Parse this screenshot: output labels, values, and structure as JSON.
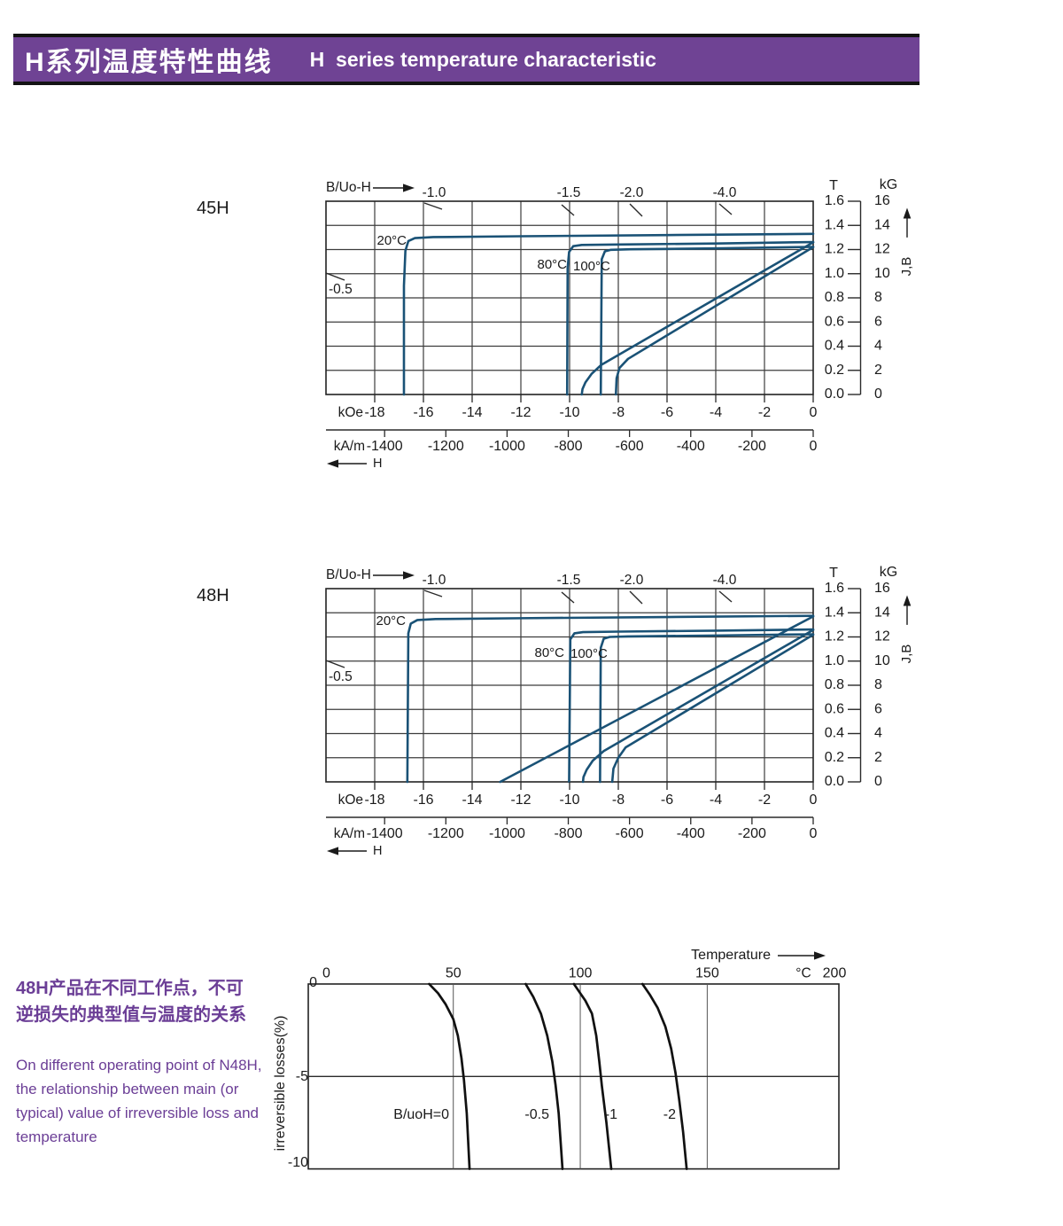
{
  "banner": {
    "title_cn": "H系列温度特性曲线",
    "title_en": "H  series temperature characteristic",
    "bg_color": "#6f4394",
    "text_color": "#ffffff"
  },
  "side_note": {
    "cn": "48H产品在不同工作点，不可\n逆损失的典型值与温度的关系",
    "en": "On different operating point of N48H,\nthe relationship between main (or\ntypical) value of irreversible loss and\ntemperature",
    "color": "#6b3e96"
  },
  "chart_data": [
    {
      "type": "line",
      "id": "bh-45h",
      "title": "45H",
      "corner_label": "B/Uo-H",
      "curve_color": "#1a5276",
      "x_axis": {
        "unit_primary": "kOe",
        "ticks_primary": [
          -18,
          -16,
          -14,
          -12,
          -10,
          -8,
          -6,
          -4,
          -2,
          0
        ],
        "unit_secondary": "kA/m",
        "ticks_secondary": [
          -1400,
          -1200,
          -1000,
          -800,
          -600,
          -400,
          -200,
          0
        ],
        "arrow_label": "H",
        "range_kOe": [
          -20,
          0
        ]
      },
      "y_axis": {
        "unit_left": "T",
        "ticks_left": [
          "1.6",
          "1.4",
          "1.2",
          "1.0",
          "0.8",
          "0.6",
          "0.4",
          "0.2",
          "0.0"
        ],
        "unit_right": "kG",
        "ticks_right": [
          16,
          14,
          12,
          10,
          8,
          6,
          4,
          2,
          0
        ],
        "curve_label": "J,B",
        "range_kG": [
          0,
          16
        ]
      },
      "load_line_labels_top": [
        "-1.0",
        "-1.5",
        "-2.0",
        "-4.0"
      ],
      "load_line_label_left": "-0.5",
      "series": [
        {
          "name": "20°C",
          "curve": "J",
          "points": [
            [
              0,
              13.3
            ],
            [
              -6,
              13.2
            ],
            [
              -12,
              13.1
            ],
            [
              -15.6,
              13.03
            ],
            [
              -16.35,
              12.95
            ],
            [
              -16.62,
              12.7
            ],
            [
              -16.74,
              11.9
            ],
            [
              -16.8,
              9
            ],
            [
              -16.8,
              0
            ]
          ]
        },
        {
          "name": "80°C",
          "curve": "J",
          "points": [
            [
              0,
              12.62
            ],
            [
              -4,
              12.5
            ],
            [
              -8,
              12.42
            ],
            [
              -9.5,
              12.38
            ],
            [
              -9.85,
              12.28
            ],
            [
              -10.02,
              11.8
            ],
            [
              -10.08,
              10.5
            ],
            [
              -10.1,
              0
            ]
          ]
        },
        {
          "name": "100°C",
          "curve": "J",
          "points": [
            [
              0,
              12.22
            ],
            [
              -4,
              12.1
            ],
            [
              -7.5,
              12.02
            ],
            [
              -8.3,
              11.98
            ],
            [
              -8.55,
              11.85
            ],
            [
              -8.68,
              11.2
            ],
            [
              -8.72,
              0
            ]
          ]
        },
        {
          "name": "80°C",
          "curve": "B",
          "points": [
            [
              0,
              12.6
            ],
            [
              -8.7,
              2.45
            ],
            [
              -9.1,
              1.7
            ],
            [
              -9.35,
              1.0
            ],
            [
              -9.47,
              0.45
            ],
            [
              -9.5,
              0
            ]
          ]
        },
        {
          "name": "100°C",
          "curve": "B",
          "points": [
            [
              0,
              12.2
            ],
            [
              -7.6,
              2.95
            ],
            [
              -7.95,
              2.2
            ],
            [
              -8.07,
              1.35
            ],
            [
              -8.1,
              0
            ]
          ]
        }
      ]
    },
    {
      "type": "line",
      "id": "bh-48h",
      "title": "48H",
      "corner_label": "B/Uo-H",
      "curve_color": "#1a5276",
      "x_axis": {
        "unit_primary": "kOe",
        "ticks_primary": [
          -18,
          -16,
          -14,
          -12,
          -10,
          -8,
          -6,
          -4,
          -2,
          0
        ],
        "unit_secondary": "kA/m",
        "ticks_secondary": [
          -1400,
          -1200,
          -1000,
          -800,
          -600,
          -400,
          -200,
          0
        ],
        "arrow_label": "H",
        "range_kOe": [
          -20,
          0
        ]
      },
      "y_axis": {
        "unit_left": "T",
        "ticks_left": [
          "1.6",
          "1.4",
          "1.2",
          "1.0",
          "0.8",
          "0.6",
          "0.4",
          "0.2",
          "0.0"
        ],
        "unit_right": "kG",
        "ticks_right": [
          16,
          14,
          12,
          10,
          8,
          6,
          4,
          2,
          0
        ],
        "curve_label": "J,B",
        "range_kG": [
          0,
          16
        ]
      },
      "load_line_labels_top": [
        "-1.0",
        "-1.5",
        "-2.0",
        "-4.0"
      ],
      "load_line_label_left": "-0.5",
      "series": [
        {
          "name": "20°C",
          "curve": "J",
          "points": [
            [
              0,
              13.75
            ],
            [
              -6,
              13.65
            ],
            [
              -12,
              13.55
            ],
            [
              -15.5,
              13.48
            ],
            [
              -16.25,
              13.4
            ],
            [
              -16.52,
              13.1
            ],
            [
              -16.62,
              12.3
            ],
            [
              -16.66,
              0
            ]
          ]
        },
        {
          "name": "80°C",
          "curve": "J",
          "points": [
            [
              0,
              12.62
            ],
            [
              -4,
              12.52
            ],
            [
              -8,
              12.44
            ],
            [
              -9.45,
              12.4
            ],
            [
              -9.8,
              12.3
            ],
            [
              -9.97,
              11.8
            ],
            [
              -10.02,
              0
            ]
          ]
        },
        {
          "name": "100°C",
          "curve": "J",
          "points": [
            [
              0,
              12.22
            ],
            [
              -4,
              12.12
            ],
            [
              -7.6,
              12.04
            ],
            [
              -8.35,
              12.0
            ],
            [
              -8.6,
              11.85
            ],
            [
              -8.72,
              11.1
            ],
            [
              -8.75,
              0
            ]
          ]
        },
        {
          "name": "20°C",
          "curve": "B",
          "points": [
            [
              0,
              13.7
            ],
            [
              -12.85,
              0
            ]
          ]
        },
        {
          "name": "80°C",
          "curve": "B",
          "points": [
            [
              0,
              12.58
            ],
            [
              -8.6,
              2.55
            ],
            [
              -9.05,
              1.75
            ],
            [
              -9.3,
              1.0
            ],
            [
              -9.43,
              0.4
            ],
            [
              -9.45,
              0
            ]
          ]
        },
        {
          "name": "100°C",
          "curve": "B",
          "points": [
            [
              0,
              12.18
            ],
            [
              -7.7,
              2.85
            ],
            [
              -8.0,
              2.0
            ],
            [
              -8.2,
              1.1
            ],
            [
              -8.25,
              0
            ]
          ]
        }
      ]
    },
    {
      "type": "line",
      "id": "irreversible-loss",
      "curve_color": "#111111",
      "x_axis": {
        "label": "Temperature",
        "unit": "°C",
        "ticks": [
          0,
          50,
          100,
          150
        ],
        "last_tick": "200",
        "range": [
          0,
          200
        ]
      },
      "y_axis": {
        "label": "irreversible  losses(%)",
        "ticks": [
          "0",
          "-5",
          "-10"
        ],
        "range": [
          -10,
          0
        ]
      },
      "series": [
        {
          "name": "B/uoH=0",
          "points": [
            [
              40.5,
              0
            ],
            [
              44,
              -0.5
            ],
            [
              47,
              -1.1
            ],
            [
              50,
              -1.9
            ],
            [
              51.8,
              -2.8
            ],
            [
              53.2,
              -4
            ],
            [
              54.2,
              -5.2
            ],
            [
              55.3,
              -7
            ],
            [
              56.4,
              -10
            ]
          ]
        },
        {
          "name": "-0.5",
          "points": [
            [
              78.5,
              0
            ],
            [
              81.5,
              -0.7
            ],
            [
              84.5,
              -1.6
            ],
            [
              87,
              -2.8
            ],
            [
              89,
              -4.2
            ],
            [
              90.3,
              -5.5
            ],
            [
              91.5,
              -7
            ],
            [
              93,
              -10
            ]
          ]
        },
        {
          "name": "-1",
          "points": [
            [
              97.5,
              0
            ],
            [
              99.5,
              -0.4
            ],
            [
              102,
              -0.9
            ],
            [
              104.6,
              -1.6
            ],
            [
              106.3,
              -2.8
            ],
            [
              107.5,
              -4.2
            ],
            [
              108.5,
              -5.5
            ],
            [
              110.3,
              -7.5
            ],
            [
              112.2,
              -10
            ]
          ]
        },
        {
          "name": "-2",
          "points": [
            [
              124.5,
              0
            ],
            [
              127.5,
              -0.6
            ],
            [
              130.5,
              -1.3
            ],
            [
              133.5,
              -2.3
            ],
            [
              135.8,
              -3.5
            ],
            [
              137.5,
              -4.8
            ],
            [
              139,
              -6.3
            ],
            [
              140.5,
              -8
            ],
            [
              141.9,
              -10
            ]
          ]
        }
      ]
    }
  ]
}
